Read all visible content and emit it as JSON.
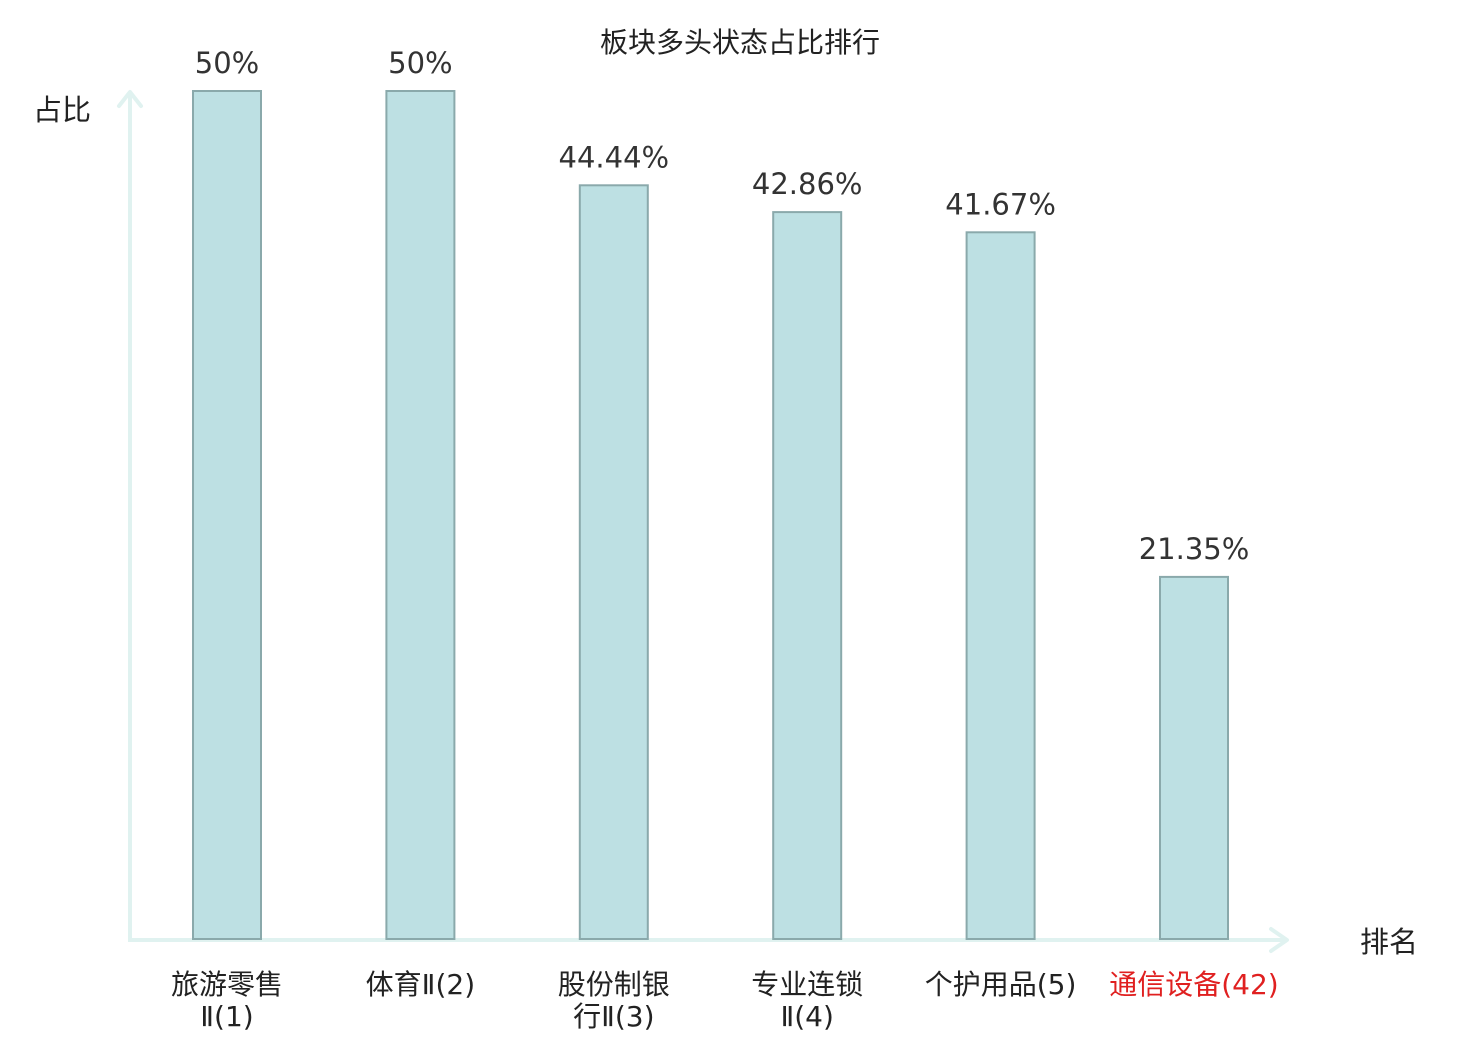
{
  "chart_data": {
    "type": "bar",
    "title": "板块多头状态占比排行",
    "xlabel": "排名",
    "ylabel": "占比",
    "categories": [
      [
        "旅游零售",
        "Ⅱ(1)"
      ],
      [
        "体育Ⅱ(2)"
      ],
      [
        "股份制银",
        "行Ⅱ(3)"
      ],
      [
        "专业连锁",
        "Ⅱ(4)"
      ],
      [
        "个护用品(5)"
      ],
      [
        "通信设备(42)"
      ]
    ],
    "values": [
      50,
      50,
      44.44,
      42.86,
      41.67,
      21.35
    ],
    "value_labels": [
      "50%",
      "50%",
      "44.44%",
      "42.86%",
      "41.67%",
      "21.35%"
    ],
    "highlight_category_index": 5,
    "ylim": [
      0,
      50
    ],
    "grid": false,
    "colors": {
      "bar_fill": "#bde0e3",
      "bar_stroke": "#8aa9ab",
      "axis": "#e0f2f0",
      "highlight_text": "#e02020",
      "text": "#333333"
    }
  }
}
